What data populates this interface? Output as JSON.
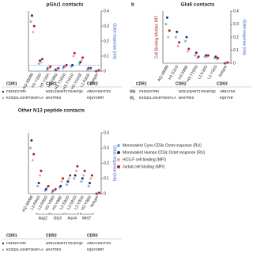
{
  "chart_data": [
    {
      "type": "scatter",
      "title": "pGlu1 contacts",
      "y2label": "Octet response (nm)",
      "categories": [
        "AQ-38099",
        "H1:Y33D",
        "H1:Y33A",
        "H3:Y99D",
        "H3:Y100D",
        "H3:Y101D",
        "H3:Y103E",
        "L1:R30D",
        "Isotype"
      ],
      "ylim": [
        0,
        40000
      ],
      "y2lim": [
        0,
        0.4
      ],
      "y2ticks": [
        0,
        0.1,
        0.2,
        0.3,
        0.4
      ],
      "refline": 0.04,
      "series": [
        {
          "color": "#7fb3e0",
          "axis": "y2",
          "values": [
            0.33,
            0.05,
            0.01,
            0.01,
            0.02,
            0.03,
            0.05,
            0.01,
            0
          ]
        },
        {
          "color": "#1d2f7c",
          "axis": "y2",
          "values": [
            0.37,
            0.07,
            0.02,
            0.01,
            0.03,
            0.04,
            0.06,
            0.02,
            0
          ]
        },
        {
          "color": "#f3a3a8",
          "axis": "y",
          "values": [
            26000,
            6000,
            2000,
            1500,
            3000,
            10000,
            7000,
            1500,
            400
          ]
        },
        {
          "color": "#b3202a",
          "axis": "y",
          "values": [
            30000,
            8000,
            3000,
            2000,
            4000,
            12000,
            9000,
            2000,
            500
          ]
        }
      ]
    },
    {
      "type": "scatter",
      "title": "Glu6 contacts",
      "panel_label": "b",
      "ylabel": "Cell Binding Median MFI",
      "y2label": "Octet response (nm)",
      "categories": [
        "AQ-38099",
        "H1:S31D",
        "H3:S98E",
        "H3:Y100D",
        "L1:K30D",
        "L1:Y32D",
        "Isotype"
      ],
      "ylim": [
        0,
        40000
      ],
      "y2lim": [
        0,
        0.4
      ],
      "y2ticks": [
        0,
        0.1,
        0.2,
        0.3,
        0.4
      ],
      "series": [
        {
          "color": "#7fb3e0",
          "axis": "y2",
          "values": [
            0.3,
            0.2,
            0.17,
            0.06,
            0.05,
            0.04,
            0
          ]
        },
        {
          "color": "#1d2f7c",
          "axis": "y2",
          "values": [
            0.35,
            0.24,
            0.2,
            0.08,
            0.06,
            0.05,
            0
          ]
        },
        {
          "color": "#f3a3a8",
          "axis": "y",
          "values": [
            20000,
            13000,
            9000,
            4000,
            5000,
            3000,
            500
          ]
        },
        {
          "color": "#b3202a",
          "axis": "y",
          "values": [
            25000,
            16000,
            11000,
            5000,
            6000,
            4000,
            600
          ]
        }
      ]
    },
    {
      "type": "scatter",
      "title": "Other N13 peptide contacts",
      "y2label": "Octet response (nm)",
      "categories": [
        "AQ-38099",
        "L3:R94D",
        "L3:R95D",
        "H3:Y99D",
        "H3:Y99E",
        "L3:S92D",
        "L3:S91D",
        "L3:Y93D",
        "H3:Y98D",
        "Isotype"
      ],
      "category_groups": [
        null,
        "Asp2",
        "Asp2",
        "Gly3",
        "Gly3",
        "Asn4",
        "Asn4",
        "Met7",
        "Met7",
        null
      ],
      "ylim": [
        0,
        40000
      ],
      "y2lim": [
        0,
        0.4
      ],
      "y2ticks": [
        0,
        0.1,
        0.2,
        0.3,
        0.4
      ],
      "legend": true,
      "series": [
        {
          "name": "Monovalent Cyno CD3ε Octet response (RU)",
          "color": "#7fb3e0",
          "axis": "y2",
          "values": [
            0.3,
            0.05,
            0.02,
            0.01,
            0.04,
            0.06,
            0.1,
            0.08,
            0.05,
            0
          ]
        },
        {
          "name": "Monovalent Human CD3ε Octet response (RU)",
          "color": "#1d2f7c",
          "axis": "y2",
          "values": [
            0.35,
            0.07,
            0.03,
            0.02,
            0.05,
            0.08,
            0.12,
            0.1,
            0.07,
            0
          ]
        },
        {
          "name": "HCS-F cell binding (MFI)",
          "color": "#f3a3a8",
          "axis": "y",
          "values": [
            22000,
            12000,
            4000,
            2000,
            8000,
            10000,
            15000,
            12000,
            10000,
            500
          ]
        },
        {
          "name": "Jurkat cell binding (MFI)",
          "color": "#b3202a",
          "axis": "y",
          "values": [
            26000,
            15000,
            5000,
            3000,
            10000,
            12000,
            18000,
            15000,
            12000,
            600
          ]
        }
      ]
    }
  ],
  "tables": [
    {
      "cdrs": [
        "CDR1",
        "CDR2",
        "CDR3"
      ],
      "rows": [
        {
          "seqs": [
            "FNIKDYYMH",
            "WIDLENANTIYDAKFQG",
            "ARDAYGHYFDV"
          ]
        },
        {
          "seqs": [
            "KSSQSLLNARTGKNYLA",
            "WASTRES",
            "KQSYSRRT"
          ]
        }
      ]
    },
    {
      "cdrs": [
        "CDR1",
        "CDR2",
        "CDR3"
      ],
      "rows": [
        {
          "label": "VH",
          "seqs": [
            "FNIKDYYMH",
            "WIDLENANTIYDAKFQG",
            "ARDAYGH"
          ]
        },
        {
          "label": "VL",
          "seqs": [
            "KSSQSLLNARTGKNYLA",
            "WASTRES",
            "KQSYSR"
          ]
        }
      ]
    },
    {
      "cdrs": [
        "CDR1",
        "CDR2",
        "CDR3"
      ],
      "rows": [
        {
          "seqs": [
            "FNIKDYYMH",
            "WIDLENANTIYDAKFQG",
            "ARDAYGHYFDV"
          ]
        },
        {
          "seqs": [
            "KSSQSLLNARTGKNYLA",
            "WASTRES",
            "KQSYSRRT"
          ]
        }
      ]
    }
  ]
}
